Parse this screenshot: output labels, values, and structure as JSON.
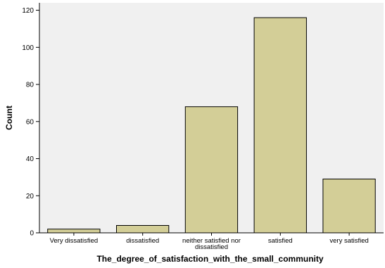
{
  "chart_data": {
    "type": "bar",
    "title": "",
    "xlabel": "The_degree_of_satisfaction_with_the_small_community",
    "ylabel": "Count",
    "categories": [
      [
        "Very dissatisfied"
      ],
      [
        "dissatisfied"
      ],
      [
        "neither satisfied nor",
        "dissatisfied"
      ],
      [
        "satisfied"
      ],
      [
        "very satisfied"
      ]
    ],
    "values": [
      2,
      4,
      68,
      116,
      29
    ],
    "ylim": [
      0,
      124
    ],
    "yticks": [
      0,
      20,
      40,
      60,
      80,
      100,
      120
    ],
    "grid": false,
    "legend": "none",
    "colors": {
      "plot_background": "#f0f0f0",
      "bar_fill": "#d3ce97",
      "bar_stroke": "#000000",
      "axis": "#000000"
    }
  }
}
